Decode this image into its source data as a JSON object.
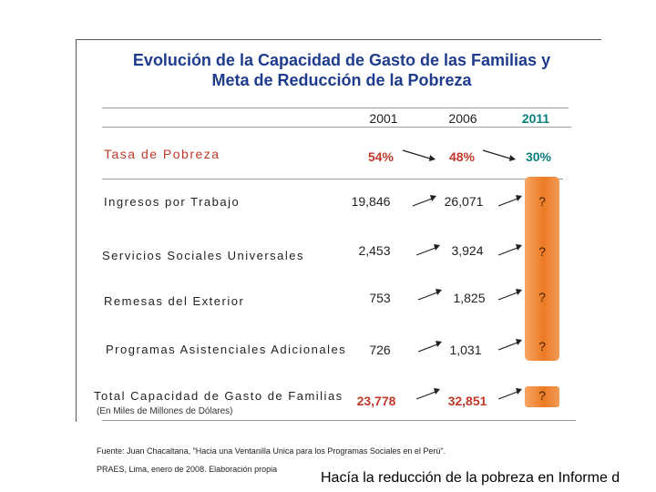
{
  "title": {
    "line1": "Evolución de la Capacidad de Gasto de las Familias y",
    "line2": "Meta de Reducción de la Pobreza"
  },
  "years": [
    "2001",
    "2006",
    "2011"
  ],
  "rows": [
    {
      "label": "Tasa de Pobreza",
      "v2001": "54%",
      "v2006": "48%",
      "v2011": "30%"
    },
    {
      "label": "Ingresos por Trabajo",
      "v2001": "19,846",
      "v2006": "26,071",
      "v2011": "?"
    },
    {
      "label": "Servicios Sociales Universales",
      "v2001": "2,453",
      "v2006": "3,924",
      "v2011": "?"
    },
    {
      "label": "Remesas del Exterior",
      "v2001": "753",
      "v2006": "1,825",
      "v2011": "?"
    },
    {
      "label": "Programas Asistenciales Adicionales",
      "v2001": "726",
      "v2006": "1,031",
      "v2011": "?"
    },
    {
      "label": "Total Capacidad de Gasto de Familias",
      "v2001": "23,778",
      "v2006": "32,851",
      "v2011": "?"
    }
  ],
  "unit_note": "(En Miles de Millones de Dólares)",
  "source": {
    "line1": "Fuente: Juan Chacaltana, \"Hacia una Ventanilla Unica para los Programas Sociales en el Perú\".",
    "line2": "PRAES, Lima, enero de 2008. Elaboración propia"
  },
  "caption": "Hacía la reducción de la pobreza en Informe d"
}
